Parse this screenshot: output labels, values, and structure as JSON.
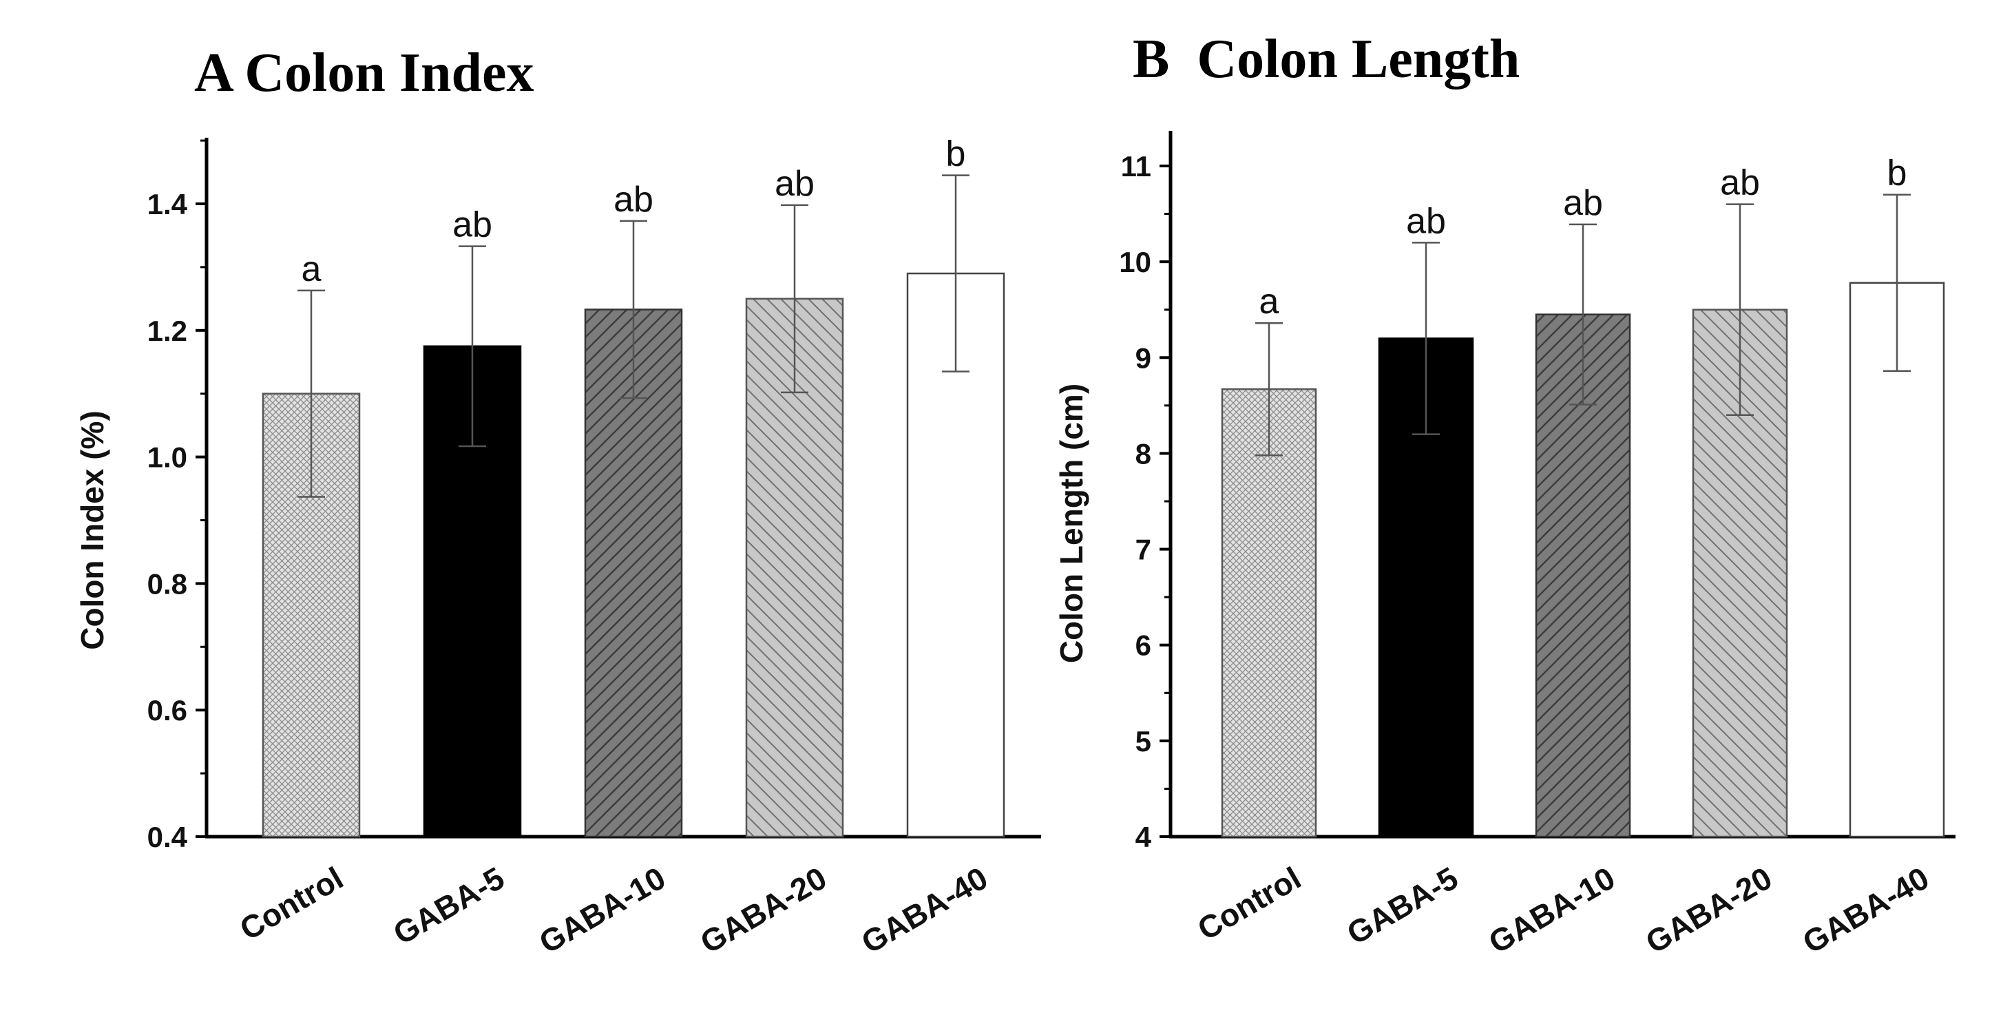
{
  "chart_data": [
    {
      "panel": "A",
      "type": "bar",
      "title": "A Colon Index",
      "xlabel": "",
      "ylabel": "Colon Index (%)",
      "ylim": [
        0.4,
        1.5
      ],
      "yticks": [
        0.4,
        0.6,
        0.8,
        1.0,
        1.2,
        1.4
      ],
      "ytick_labels": [
        "0.4",
        "0.6",
        "0.8",
        "1.0",
        "1.2",
        "1.4"
      ],
      "categories": [
        "Control",
        "GABA-5",
        "GABA-10",
        "GABA-20",
        "GABA-40"
      ],
      "values": [
        1.1,
        1.175,
        1.233,
        1.25,
        1.29
      ],
      "errors": [
        0.163,
        0.158,
        0.14,
        0.148,
        0.155
      ],
      "significance": [
        "a",
        "ab",
        "ab",
        "ab",
        "b"
      ],
      "grid": false
    },
    {
      "panel": "B",
      "type": "bar",
      "title": "B  Colon Length",
      "xlabel": "",
      "ylabel": "Colon Length (cm)",
      "ylim": [
        4,
        11
      ],
      "yticks": [
        4,
        5,
        6,
        7,
        8,
        9,
        10,
        11
      ],
      "ytick_labels": [
        "4",
        "5",
        "6",
        "7",
        "8",
        "9",
        "10",
        "11"
      ],
      "categories": [
        "Control",
        "GABA-5",
        "GABA-10",
        "GABA-20",
        "GABA-40"
      ],
      "values": [
        8.67,
        9.2,
        9.45,
        9.5,
        9.78
      ],
      "errors": [
        0.69,
        1.0,
        0.94,
        1.1,
        0.92
      ],
      "significance": [
        "a",
        "ab",
        "ab",
        "ab",
        "b"
      ],
      "grid": false
    }
  ],
  "bar_styles": [
    {
      "name": "crosshatch-light",
      "fill": "#d9d9d9",
      "stroke": "#555555"
    },
    {
      "name": "solid-black",
      "fill": "#000000",
      "stroke": "#000000"
    },
    {
      "name": "hatch-dark",
      "fill": "#7a7a7a",
      "stroke": "#333333"
    },
    {
      "name": "hatch-light",
      "fill": "#c4c4c4",
      "stroke": "#555555"
    },
    {
      "name": "white",
      "fill": "#ffffff",
      "stroke": "#444444"
    }
  ]
}
